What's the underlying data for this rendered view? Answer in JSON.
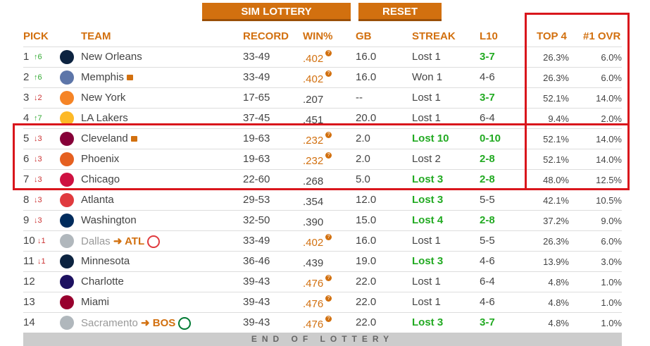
{
  "buttons": {
    "sim": "SIM LOTTERY",
    "reset": "RESET"
  },
  "headers": {
    "pick": "PICK",
    "team": "TEAM",
    "record": "RECORD",
    "win": "WIN%",
    "gb": "GB",
    "streak": "STREAK",
    "l10": "L10",
    "top4": "TOP 4",
    "first": "#1 OVR"
  },
  "rows": [
    {
      "pick": "1",
      "move": "6",
      "dir": "up",
      "team": "New Orleans",
      "logo": "#0c2340",
      "record": "33-49",
      "win": ".402",
      "tie": true,
      "gb": "16.0",
      "streak": "Lost 1",
      "streak_hot": false,
      "l10": "3-7",
      "l10_hot": true,
      "top4": "26.3%",
      "first": "6.0%"
    },
    {
      "pick": "2",
      "move": "6",
      "dir": "up",
      "team": "Memphis",
      "lock": true,
      "logo": "#5d76a9",
      "record": "33-49",
      "win": ".402",
      "tie": true,
      "gb": "16.0",
      "streak": "Won 1",
      "streak_hot": false,
      "l10": "4-6",
      "l10_hot": false,
      "top4": "26.3%",
      "first": "6.0%"
    },
    {
      "pick": "3",
      "move": "2",
      "dir": "down",
      "team": "New York",
      "logo": "#f58426",
      "record": "17-65",
      "win": ".207",
      "tie": false,
      "gb": "--",
      "streak": "Lost 1",
      "streak_hot": false,
      "l10": "3-7",
      "l10_hot": true,
      "top4": "52.1%",
      "first": "14.0%"
    },
    {
      "pick": "4",
      "move": "7",
      "dir": "up",
      "team": "LA Lakers",
      "logo": "#fdb927",
      "record": "37-45",
      "win": ".451",
      "tie": false,
      "gb": "20.0",
      "streak": "Lost 1",
      "streak_hot": false,
      "l10": "6-4",
      "l10_hot": false,
      "top4": "9.4%",
      "first": "2.0%"
    },
    {
      "pick": "5",
      "move": "3",
      "dir": "down",
      "team": "Cleveland",
      "lock": true,
      "logo": "#860038",
      "record": "19-63",
      "win": ".232",
      "tie": true,
      "gb": "2.0",
      "streak": "Lost 10",
      "streak_hot": true,
      "l10": "0-10",
      "l10_hot": true,
      "top4": "52.1%",
      "first": "14.0%"
    },
    {
      "pick": "6",
      "move": "3",
      "dir": "down",
      "team": "Phoenix",
      "logo": "#e56020",
      "record": "19-63",
      "win": ".232",
      "tie": true,
      "gb": "2.0",
      "streak": "Lost 2",
      "streak_hot": false,
      "l10": "2-8",
      "l10_hot": true,
      "top4": "52.1%",
      "first": "14.0%"
    },
    {
      "pick": "7",
      "move": "3",
      "dir": "down",
      "team": "Chicago",
      "logo": "#ce1141",
      "record": "22-60",
      "win": ".268",
      "tie": false,
      "gb": "5.0",
      "streak": "Lost 3",
      "streak_hot": true,
      "l10": "2-8",
      "l10_hot": true,
      "top4": "48.0%",
      "first": "12.5%"
    },
    {
      "pick": "8",
      "move": "3",
      "dir": "down",
      "team": "Atlanta",
      "logo": "#e03a3e",
      "record": "29-53",
      "win": ".354",
      "tie": false,
      "gb": "12.0",
      "streak": "Lost 3",
      "streak_hot": true,
      "l10": "5-5",
      "l10_hot": false,
      "top4": "42.1%",
      "first": "10.5%"
    },
    {
      "pick": "9",
      "move": "3",
      "dir": "down",
      "team": "Washington",
      "logo": "#002b5c",
      "record": "32-50",
      "win": ".390",
      "tie": false,
      "gb": "15.0",
      "streak": "Lost 4",
      "streak_hot": true,
      "l10": "2-8",
      "l10_hot": true,
      "top4": "37.2%",
      "first": "9.0%"
    },
    {
      "pick": "10",
      "move": "1",
      "dir": "down",
      "team": "Dallas",
      "traded": true,
      "to": "ATL",
      "to_logo": "#e03a3e",
      "logo": "#b0b7bc",
      "record": "33-49",
      "win": ".402",
      "tie": true,
      "gb": "16.0",
      "streak": "Lost 1",
      "streak_hot": false,
      "l10": "5-5",
      "l10_hot": false,
      "top4": "26.3%",
      "first": "6.0%"
    },
    {
      "pick": "11",
      "move": "1",
      "dir": "down",
      "team": "Minnesota",
      "logo": "#0c2340",
      "record": "36-46",
      "win": ".439",
      "tie": false,
      "gb": "19.0",
      "streak": "Lost 3",
      "streak_hot": true,
      "l10": "4-6",
      "l10_hot": false,
      "top4": "13.9%",
      "first": "3.0%"
    },
    {
      "pick": "12",
      "move": "",
      "dir": "",
      "team": "Charlotte",
      "logo": "#1d1160",
      "record": "39-43",
      "win": ".476",
      "tie": true,
      "gb": "22.0",
      "streak": "Lost 1",
      "streak_hot": false,
      "l10": "6-4",
      "l10_hot": false,
      "top4": "4.8%",
      "first": "1.0%"
    },
    {
      "pick": "13",
      "move": "",
      "dir": "",
      "team": "Miami",
      "logo": "#98002e",
      "record": "39-43",
      "win": ".476",
      "tie": true,
      "gb": "22.0",
      "streak": "Lost 1",
      "streak_hot": false,
      "l10": "4-6",
      "l10_hot": false,
      "top4": "4.8%",
      "first": "1.0%"
    },
    {
      "pick": "14",
      "move": "",
      "dir": "",
      "team": "Sacramento",
      "traded": true,
      "to": "BOS",
      "to_logo": "#007a33",
      "logo": "#b0b7bc",
      "record": "39-43",
      "win": ".476",
      "tie": true,
      "gb": "22.0",
      "streak": "Lost 3",
      "streak_hot": true,
      "l10": "3-7",
      "l10_hot": true,
      "top4": "4.8%",
      "first": "1.0%"
    }
  ],
  "footer": "END OF LOTTERY",
  "colors": {
    "accent": "#d2700f",
    "highlight": "#d9161c",
    "good": "#22aa22"
  }
}
